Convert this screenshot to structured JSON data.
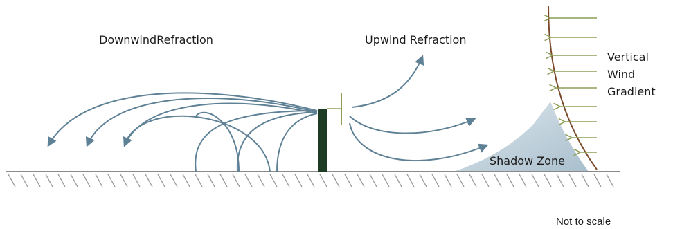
{
  "labels": {
    "downwind": "DownwindRefraction",
    "upwind": "Upwind Refraction",
    "gradient_line1": "Vertical",
    "gradient_line2": "Wind",
    "gradient_line3": "Gradient",
    "shadow_zone": "Shadow Zone",
    "scale_note": "Not to scale"
  },
  "colors": {
    "ray": "#5f8196",
    "barrier": "#1e3b24",
    "wind_arrow": "#8c9e56",
    "wind_profile": "#7a4a2a",
    "shadow": "#cfdde6",
    "ground": "#8a8a8a"
  }
}
